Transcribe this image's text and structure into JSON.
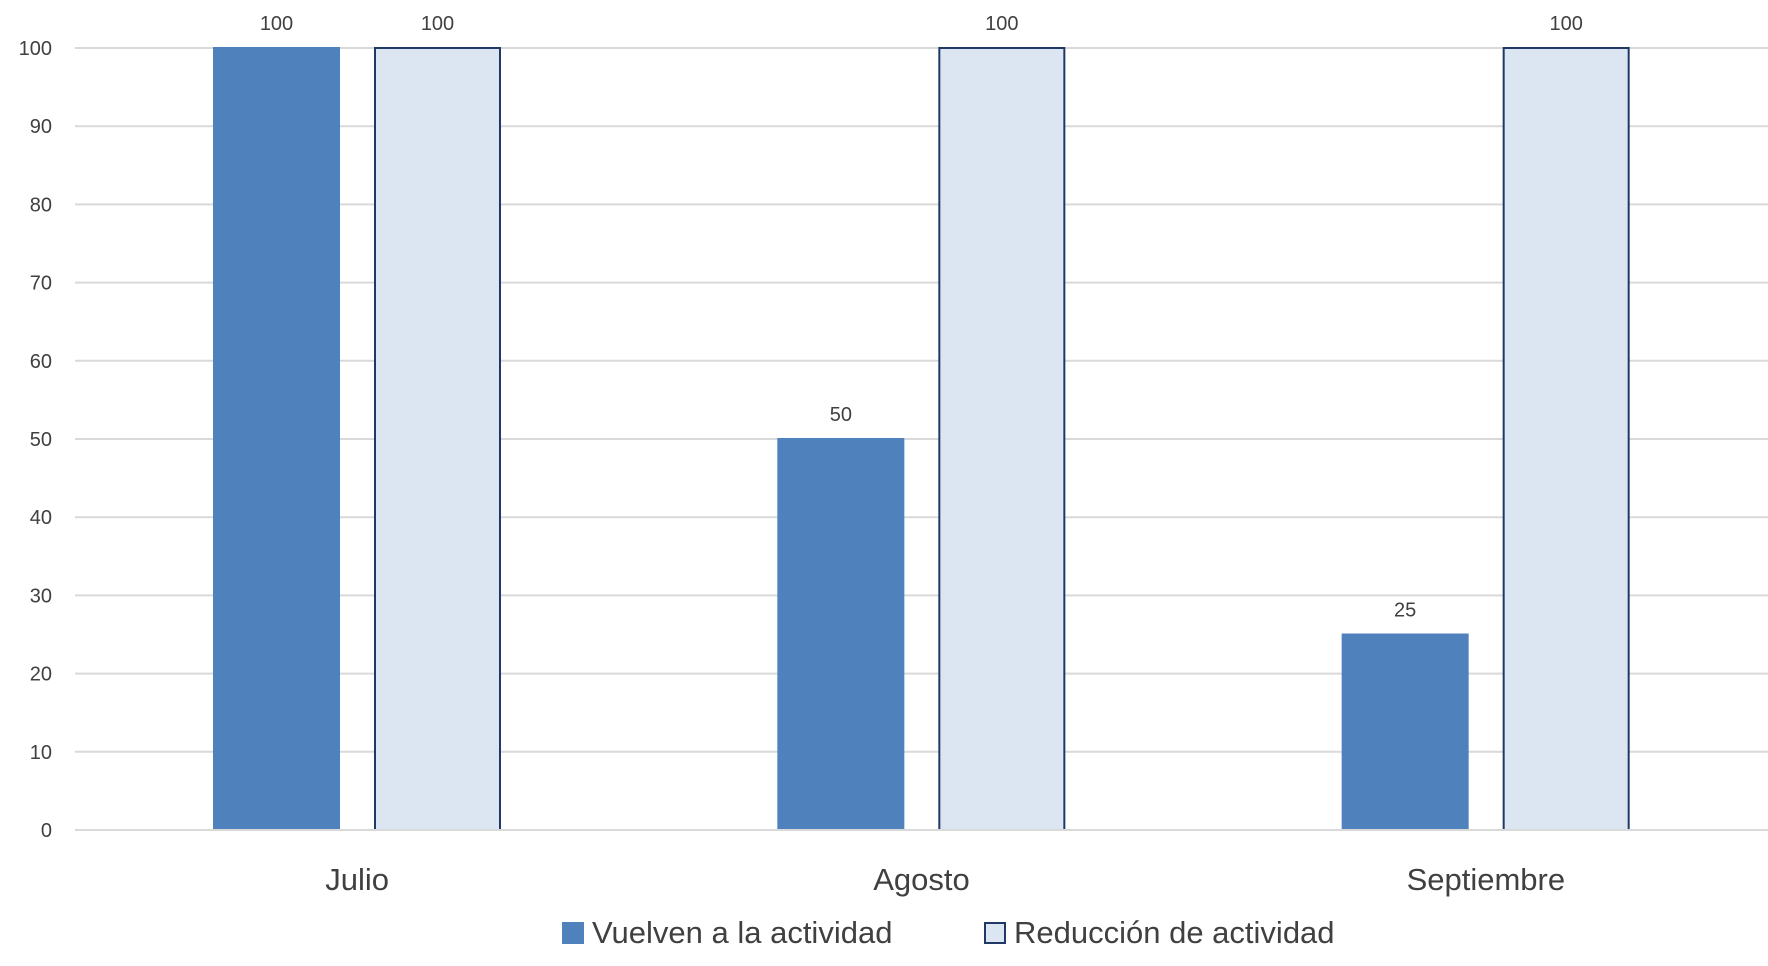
{
  "chart_data": {
    "type": "bar",
    "categories": [
      "Julio",
      "Agosto",
      "Septiembre"
    ],
    "series": [
      {
        "name": "Vuelven a la actividad",
        "values": [
          100,
          50,
          25
        ],
        "color": "#4f81bd",
        "border": "#4f81bd"
      },
      {
        "name": "Reducción de actividad",
        "values": [
          100,
          100,
          100
        ],
        "color": "#dce6f2",
        "border": "#1f3864"
      }
    ],
    "ylim": [
      0,
      100
    ],
    "yticks": [
      0,
      10,
      20,
      30,
      40,
      50,
      60,
      70,
      80,
      90,
      100
    ],
    "grid": true,
    "gridColor": "#d9d9d9",
    "legend": "bottom",
    "data_labels": true
  }
}
